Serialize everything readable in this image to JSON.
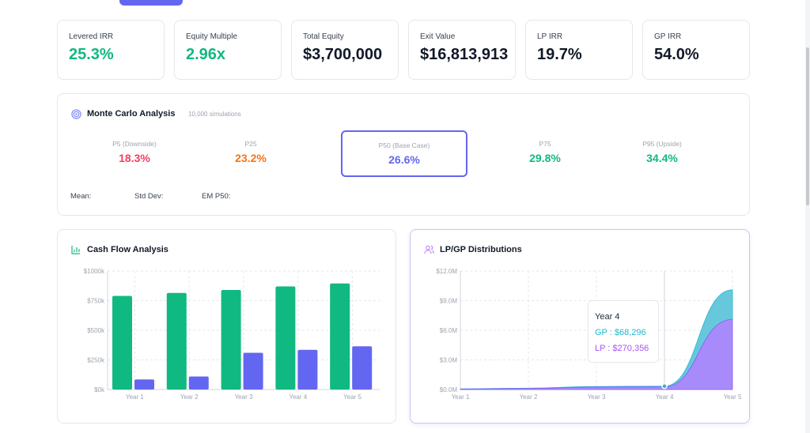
{
  "kpis": [
    {
      "label": "Levered IRR",
      "value": "25.3%",
      "color": "#10b981"
    },
    {
      "label": "Equity Multiple",
      "value": "2.96x",
      "color": "#10b981"
    },
    {
      "label": "Total Equity",
      "value": "$3,700,000",
      "color": "#111827"
    },
    {
      "label": "Exit Value",
      "value": "$16,813,913",
      "color": "#111827"
    },
    {
      "label": "LP IRR",
      "value": "19.7%",
      "color": "#111827"
    },
    {
      "label": "GP IRR",
      "value": "54.0%",
      "color": "#111827"
    }
  ],
  "monte_carlo": {
    "title": "Monte Carlo Analysis",
    "subtitle": "10,000 simulations",
    "icon": "target-icon",
    "percentiles": [
      {
        "label": "P5 (Downside)",
        "value": "18.3%",
        "color": "#f43f5e"
      },
      {
        "label": "P25",
        "value": "23.2%",
        "color": "#f97316"
      },
      {
        "label": "P50 (Base Case)",
        "value": "26.6%",
        "color": "#6366f1",
        "selected": true
      },
      {
        "label": "P75",
        "value": "29.8%",
        "color": "#10b981"
      },
      {
        "label": "P95 (Upside)",
        "value": "34.4%",
        "color": "#10b981"
      }
    ],
    "mean_label": "Mean:",
    "std_label": "Std Dev:",
    "em_label": "EM P50:"
  },
  "chart_data": [
    {
      "type": "bar",
      "title": "Cash Flow Analysis",
      "categories": [
        "Year 1",
        "Year 2",
        "Year 3",
        "Year 4",
        "Year 5"
      ],
      "series": [
        {
          "values": [
            790,
            815,
            840,
            870,
            895
          ],
          "color": "#10b981"
        },
        {
          "values": [
            85,
            110,
            310,
            335,
            365
          ],
          "color": "#6366f1"
        }
      ],
      "ylim": [
        0,
        1000
      ],
      "yticks": [
        "$0k",
        "$250k",
        "$500k",
        "$750k",
        "$1000k"
      ],
      "grid": true
    },
    {
      "type": "area",
      "title": "LP/GP Distributions",
      "categories": [
        "Year 1",
        "Year 2",
        "Year 3",
        "Year 4",
        "Year 5"
      ],
      "series": [
        {
          "name": "LP",
          "values": [
            50000,
            110000,
            250000,
            270356,
            7100000
          ],
          "color": "#a78bfa"
        },
        {
          "name": "GP",
          "values": [
            20000,
            30000,
            60000,
            68296,
            3000000
          ],
          "color": "#67c8dc"
        }
      ],
      "stacked": true,
      "ylim": [
        0,
        12000000
      ],
      "yticks": [
        "$0.0M",
        "$3.0M",
        "$6.0M",
        "$9.0M",
        "$12.0M"
      ],
      "grid": true,
      "tooltip": {
        "title": "Year 4",
        "gp": "GP : $68,296",
        "lp": "LP : $270,356"
      }
    }
  ]
}
